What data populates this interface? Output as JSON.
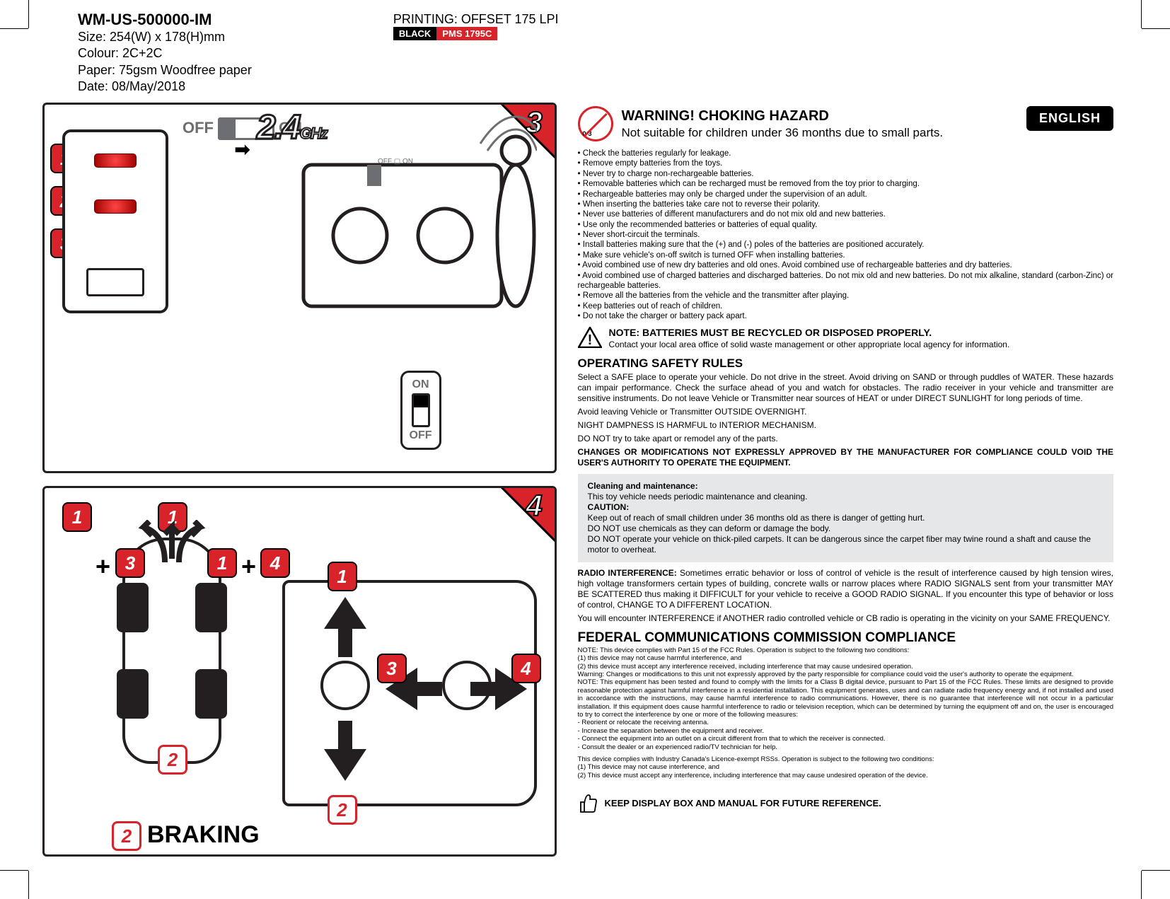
{
  "header": {
    "title": "WM-US-500000-IM",
    "size": "Size: 254(W) x 178(H)mm",
    "colour": "Colour: 2C+2C",
    "paper": "Paper: 75gsm Woodfree paper",
    "date": "Date: 08/May/2018",
    "printing": "PRINTING: OFFSET 175 LPI",
    "chip_black": "BLACK",
    "chip_red": "PMS 1795C"
  },
  "panel3": {
    "corner_num": "3",
    "badge1": "1",
    "badge2": "2",
    "badge3": "3",
    "off": "OFF",
    "on": "ON",
    "ghz": "2.4",
    "ghz_suffix": "GHz"
  },
  "panel4": {
    "corner_num": "4",
    "n1": "1",
    "n2": "2",
    "n3": "3",
    "n4": "4",
    "braking": "BRAKING",
    "plus": "+"
  },
  "right": {
    "lang": "ENGLISH",
    "age": "0-3",
    "warn_title": "WARNING!  CHOKING HAZARD",
    "warn_sub": "Not suitable for children under 36 months due to small parts.",
    "bullets": [
      "Check the batteries regularly for leakage.",
      "Remove empty batteries from the toys.",
      "Never try to charge non-rechargeable batteries.",
      "Removable batteries which can be recharged must be removed from the toy prior to charging.",
      "Rechargeable batteries may only be charged under the supervision of an adult.",
      "When inserting the batteries take care not to reverse their polarity.",
      "Never use batteries of different manufacturers and do not mix old and new batteries.",
      "Use only the recommended batteries or batteries of equal quality.",
      "Never short-circuit the terminals.",
      "Install batteries making sure that the (+) and (-) poles of the batteries are positioned accurately.",
      "Make sure vehicle's on-off switch is turned OFF when installing batteries.",
      "Avoid combined use of new dry batteries and old ones.  Avoid combined use of rechargeable  batteries and dry batteries.",
      "Avoid combined use of charged batteries and discharged batteries. Do not mix old and new batteries. Do not mix alkaline, standard (carbon-Zinc) or rechargeable batteries.",
      "Remove all the batteries from the vehicle and the transmitter after playing.",
      "Keep batteries out of reach of children.",
      "Do not take the charger or battery pack apart."
    ],
    "note_bold": "NOTE: BATTERIES MUST BE RECYCLED OR DISPOSED PROPERLY.",
    "note_sub": "Contact your local area office of solid waste management or other appropriate local agency for information.",
    "op_h": "OPERATING SAFETY RULES",
    "op_p1": "Select a SAFE place to operate your vehicle. Do not drive in the street. Avoid driving on SAND or through puddles of WATER. These hazards can impair performance. Check the surface ahead of you and watch for obstacles. The radio receiver in your vehicle and transmitter are sensitive instruments. Do not leave Vehicle or Transmitter near sources of HEAT or under DIRECT SUNLIGHT for long periods of time.",
    "op_p2": "Avoid leaving Vehicle or Transmitter OUTSIDE OVERNIGHT.",
    "op_p3": "NIGHT DAMPNESS IS HARMFUL to INTERIOR MECHANISM.",
    "op_p4": "DO NOT try to take apart or remodel any of the parts.",
    "op_bold": "CHANGES OR MODIFICATIONS NOT EXPRESSLY APPROVED BY THE MANUFACTURER FOR COMPLIANCE COULD VOID THE USER'S AUTHORITY TO OPERATE THE EQUIPMENT.",
    "box_h1": "Cleaning and maintenance:",
    "box_l1": "This toy vehicle needs periodic maintenance and cleaning.",
    "box_h2": "CAUTION:",
    "box_l2": "Keep out of reach of small children under 36 months old as there is danger of getting hurt.",
    "box_l3": "DO NOT use chemicals as they can deform or damage the body.",
    "box_l4": "DO NOT operate your vehicle on thick-piled carpets.  It can be dangerous since the carpet fiber may twine round a shaft and cause the motor to overheat.",
    "radio_h": "RADIO INTERFERENCE:",
    "radio_p": "  Sometimes erratic behavior or loss of control of vehicle is the result of interference caused by high tension wires, high voltage transformers certain types of building, concrete walls or narrow places where RADIO SIGNALS sent from your transmitter MAY BE SCATTERED thus making it DIFFICULT for your vehicle to receive a GOOD RADIO SIGNAL.  If you encounter this type of behavior or loss of control, CHANGE TO A DIFFERENT LOCATION.",
    "radio_p2": "You will encounter INTERFERENCE if ANOTHER radio controlled vehicle or CB radio is operating in the vicinity on your SAME FREQUENCY.",
    "fcc_h": "FEDERAL COMMUNICATIONS COMMISSION COMPLIANCE",
    "fcc_fine": "NOTE:  This device complies with Part 15 of the FCC Rules.  Operation is subject to the following two conditions:\n(1) this device may not cause harmful interference, and\n(2) this device must accept any interference received, including interference that may cause undesired operation.\nWarning:  Changes or modifications to this unit not expressly approved by the party responsible for compliance could void the user's authority to operate the equipment.\nNOTE:  This equipment has been tested and found to comply with the limits for a Class B digital device, pursuant to Part 15 of the FCC Rules.  These limits are designed to provide reasonable protection against harmful interference in a residential installation.  This equipment generates, uses and can radiate radio frequency energy and, if not installed and used in accordance with the instructions, may cause harmful interference to radio communications.  However, there is no guarantee that interference will not occur in a particular installation. If this equipment does cause harmful interference to radio or television reception, which can be determined by turning the equipment off and on, the user is encouraged to try to correct the interference by one or more of the following measures:\n - Reorient or relocate the receiving antenna.\n - Increase the separation between the equipment and receiver.\n - Connect the equipment into an outlet on a circuit different from that to which the receiver is connected.\n - Consult the dealer or an experienced radio/TV technician for help.",
    "ic_fine": "This device complies with Industry Canada's Licence-exempt RSSs. Operation is subject to the following two conditions:\n(1) This device may not cause interference, and\n(2) This device must accept any interference, including interference that may cause undesired operation of the device.",
    "keep": "KEEP DISPLAY BOX AND MANUAL FOR FUTURE REFERENCE."
  },
  "colors": {
    "red": "#d8232a",
    "black": "#231f20",
    "grey": "#6d6e71",
    "boxgrey": "#e6e7e8"
  }
}
